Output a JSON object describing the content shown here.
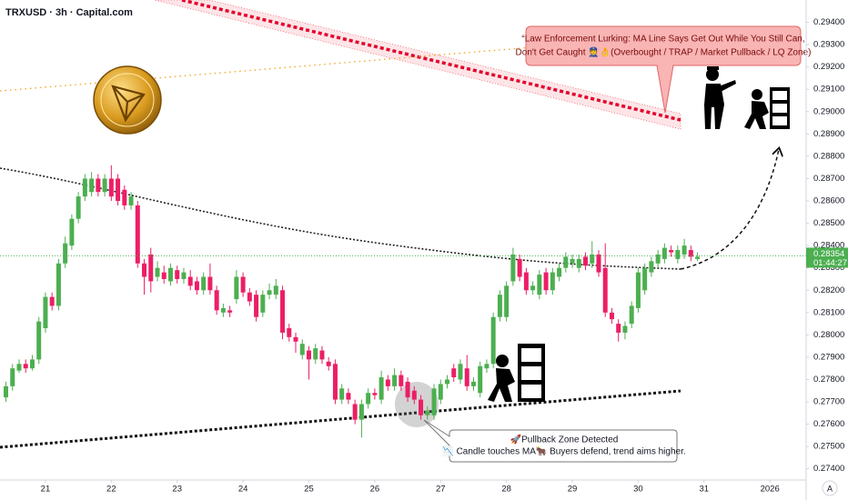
{
  "chart_data": {
    "type": "candlestick",
    "title": "TRXUSD · 3h · Capital.com",
    "x": [
      20.4,
      20.5,
      20.6,
      20.7,
      20.8,
      20.9,
      21.0,
      21.1,
      21.2,
      21.3,
      21.4,
      21.5,
      21.6,
      21.7,
      21.8,
      21.9,
      22.0,
      22.1,
      22.2,
      22.3,
      22.4,
      22.5,
      22.6,
      22.7,
      22.8,
      22.9,
      23.0,
      23.1,
      23.2,
      23.3,
      23.4,
      23.5,
      23.6,
      23.7,
      23.8,
      23.9,
      24.0,
      24.1,
      24.2,
      24.3,
      24.4,
      24.5,
      24.6,
      24.7,
      24.8,
      24.9,
      25.0,
      25.1,
      25.2,
      25.3,
      25.4,
      25.5,
      25.6,
      25.7,
      25.8,
      25.9,
      26.0,
      26.1,
      26.2,
      26.3,
      26.4,
      26.5,
      26.6,
      26.7,
      26.8,
      26.9,
      27.0,
      27.1,
      27.2,
      27.3,
      27.4,
      27.5,
      27.6,
      27.7,
      27.8,
      27.9,
      28.0,
      28.1,
      28.2,
      28.3,
      28.4,
      28.5,
      28.6,
      28.7,
      28.8,
      28.9,
      29.0,
      29.1,
      29.2,
      29.3,
      29.4,
      29.5,
      29.6,
      29.7,
      29.8,
      29.9,
      30.0,
      30.1,
      30.2,
      30.3,
      30.4,
      30.5,
      30.6,
      30.7,
      30.8,
      30.9
    ],
    "open": [
      0.2772,
      0.2777,
      0.2784,
      0.2787,
      0.2785,
      0.2789,
      0.2803,
      0.2817,
      0.2813,
      0.2832,
      0.284,
      0.2852,
      0.2862,
      0.2864,
      0.287,
      0.2864,
      0.287,
      0.287,
      0.2865,
      0.2858,
      0.2858,
      0.2832,
      0.2836,
      0.2826,
      0.2828,
      0.2824,
      0.2829,
      0.2825,
      0.2826,
      0.2824,
      0.282,
      0.2826,
      0.282,
      0.281,
      0.2811,
      0.2816,
      0.2826,
      0.2819,
      0.2818,
      0.281,
      0.2818,
      0.2818,
      0.282,
      0.2803,
      0.2799,
      0.2791,
      0.2793,
      0.2789,
      0.2793,
      0.2788,
      0.2787,
      0.2771,
      0.2774,
      0.2769,
      0.2762,
      0.2769,
      0.2774,
      0.2771,
      0.278,
      0.2777,
      0.2782,
      0.2779,
      0.2775,
      0.2771,
      0.2764,
      0.2764,
      0.2771,
      0.2778,
      0.2785,
      0.278,
      0.2785,
      0.2777,
      0.2774,
      0.2785,
      0.2787,
      0.2808,
      0.2808,
      0.2824,
      0.2834,
      0.2828,
      0.282,
      0.2818,
      0.2828,
      0.282,
      0.2826,
      0.283,
      0.2832,
      0.283,
      0.2835,
      0.2832,
      0.2836,
      0.283,
      0.281,
      0.2805,
      0.2801,
      0.2805,
      0.2812,
      0.282,
      0.2828,
      0.2832,
      0.2834,
      0.2838,
      0.2834,
      0.2836,
      0.2838,
      0.2834
    ],
    "high": [
      0.2779,
      0.2787,
      0.2789,
      0.2789,
      0.2791,
      0.2808,
      0.2819,
      0.2819,
      0.2834,
      0.2844,
      0.2854,
      0.2864,
      0.2872,
      0.2873,
      0.2872,
      0.2872,
      0.2876,
      0.2872,
      0.2867,
      0.2864,
      0.286,
      0.2834,
      0.2839,
      0.2833,
      0.2831,
      0.2832,
      0.2831,
      0.283,
      0.2829,
      0.2826,
      0.2828,
      0.2832,
      0.2822,
      0.2814,
      0.2813,
      0.2829,
      0.2828,
      0.2821,
      0.282,
      0.282,
      0.2823,
      0.2825,
      0.2822,
      0.2805,
      0.2801,
      0.2798,
      0.2795,
      0.2796,
      0.2795,
      0.279,
      0.2789,
      0.2778,
      0.2776,
      0.2771,
      0.2771,
      0.2776,
      0.2776,
      0.2784,
      0.2782,
      0.2785,
      0.2784,
      0.2781,
      0.2777,
      0.2773,
      0.2768,
      0.2778,
      0.278,
      0.2782,
      0.2787,
      0.2789,
      0.2791,
      0.2781,
      0.2788,
      0.2789,
      0.281,
      0.282,
      0.2824,
      0.2839,
      0.2836,
      0.283,
      0.2824,
      0.2829,
      0.283,
      0.283,
      0.2832,
      0.2837,
      0.2836,
      0.2836,
      0.2837,
      0.2842,
      0.2838,
      0.2841,
      0.2812,
      0.2807,
      0.2806,
      0.2815,
      0.283,
      0.2832,
      0.2835,
      0.2838,
      0.2841,
      0.284,
      0.284,
      0.2843,
      0.284,
      0.2837
    ],
    "low": [
      0.277,
      0.2775,
      0.2783,
      0.2783,
      0.2784,
      0.2787,
      0.2801,
      0.2811,
      0.2811,
      0.283,
      0.2838,
      0.285,
      0.286,
      0.2862,
      0.2862,
      0.2862,
      0.286,
      0.2858,
      0.2856,
      0.2856,
      0.283,
      0.2818,
      0.2819,
      0.2824,
      0.2823,
      0.2822,
      0.2823,
      0.2823,
      0.282,
      0.2818,
      0.2818,
      0.2818,
      0.2809,
      0.2808,
      0.2808,
      0.2814,
      0.2817,
      0.2813,
      0.2806,
      0.2808,
      0.2816,
      0.2816,
      0.2798,
      0.2797,
      0.2792,
      0.2789,
      0.278,
      0.2787,
      0.2787,
      0.2784,
      0.2769,
      0.2769,
      0.2769,
      0.276,
      0.2754,
      0.2767,
      0.2771,
      0.2769,
      0.2775,
      0.2775,
      0.2775,
      0.277,
      0.2769,
      0.2762,
      0.2762,
      0.2762,
      0.2769,
      0.2776,
      0.2779,
      0.2778,
      0.2775,
      0.2775,
      0.2772,
      0.2783,
      0.2785,
      0.2806,
      0.2806,
      0.2822,
      0.2824,
      0.2818,
      0.2818,
      0.2816,
      0.2818,
      0.2818,
      0.2824,
      0.2828,
      0.283,
      0.2828,
      0.2829,
      0.283,
      0.2826,
      0.2808,
      0.2805,
      0.2797,
      0.2798,
      0.2803,
      0.281,
      0.2818,
      0.2826,
      0.283,
      0.2832,
      0.2835,
      0.2832,
      0.2834,
      0.2833,
      0.2833
    ],
    "close": [
      0.2777,
      0.2785,
      0.2787,
      0.2785,
      0.2789,
      0.2806,
      0.2817,
      0.2813,
      0.2832,
      0.2841,
      0.2852,
      0.2862,
      0.287,
      0.287,
      0.2864,
      0.287,
      0.2862,
      0.286,
      0.2858,
      0.2862,
      0.2832,
      0.2826,
      0.2824,
      0.283,
      0.2825,
      0.283,
      0.2825,
      0.2828,
      0.2822,
      0.282,
      0.2826,
      0.282,
      0.2811,
      0.2812,
      0.281,
      0.2826,
      0.2819,
      0.2815,
      0.2808,
      0.2818,
      0.282,
      0.2822,
      0.2801,
      0.2799,
      0.2797,
      0.2796,
      0.2789,
      0.2794,
      0.2789,
      0.2786,
      0.2771,
      0.2776,
      0.2771,
      0.2762,
      0.2769,
      0.2774,
      0.2773,
      0.2781,
      0.2777,
      0.2782,
      0.2777,
      0.2772,
      0.2771,
      0.2764,
      0.2766,
      0.2776,
      0.2778,
      0.278,
      0.2781,
      0.2787,
      0.2777,
      0.2779,
      0.2786,
      0.2787,
      0.2808,
      0.2818,
      0.2822,
      0.2836,
      0.2826,
      0.282,
      0.2822,
      0.2827,
      0.282,
      0.2828,
      0.283,
      0.2835,
      0.2834,
      0.2834,
      0.2831,
      0.2836,
      0.2828,
      0.281,
      0.2807,
      0.2801,
      0.2804,
      0.2813,
      0.2828,
      0.283,
      0.2833,
      0.2836,
      0.2839,
      0.2837,
      0.2838,
      0.284,
      0.2835,
      0.2835
    ],
    "up_color": "#4caf50",
    "down_color": "#ec1e66",
    "xlim": [
      20.31,
      32.55
    ],
    "xticks": [
      21,
      22,
      23,
      24,
      25,
      26,
      27,
      28,
      29,
      30,
      31,
      {
        "value": 32,
        "label": "2026"
      }
    ],
    "ylim": [
      0.2735,
      0.295
    ],
    "yticks": [
      {
        "value": 0.295,
        "label": "0.29500"
      },
      {
        "value": 0.294,
        "label": "0.29400"
      },
      {
        "value": 0.293,
        "label": "0.29300"
      },
      {
        "value": 0.292,
        "label": "0.29200"
      },
      {
        "value": 0.291,
        "label": "0.29100"
      },
      {
        "value": 0.29,
        "label": "0.29000"
      },
      {
        "value": 0.289,
        "label": "0.28900"
      },
      {
        "value": 0.288,
        "label": "0.28800"
      },
      {
        "value": 0.287,
        "label": "0.28700"
      },
      {
        "value": 0.286,
        "label": "0.28600"
      },
      {
        "value": 0.285,
        "label": "0.28500"
      },
      {
        "value": 0.284,
        "label": "0.28400"
      },
      {
        "value": 0.283,
        "label": "0.28300"
      },
      {
        "value": 0.282,
        "label": "0.28200"
      },
      {
        "value": 0.281,
        "label": "0.28100"
      },
      {
        "value": 0.28,
        "label": "0.28000"
      },
      {
        "value": 0.279,
        "label": "0.27900"
      },
      {
        "value": 0.278,
        "label": "0.27800"
      },
      {
        "value": 0.277,
        "label": "0.27700"
      },
      {
        "value": 0.276,
        "label": "0.27600"
      },
      {
        "value": 0.275,
        "label": "0.27500"
      },
      {
        "value": 0.274,
        "label": "0.27400"
      }
    ],
    "grid": false,
    "last_price": 0.28354,
    "countdown": "01:44:27",
    "annotations": [
      {
        "lines": [
          "“Law Enforcement Lurking: MA Line Says Get Out While You Still Can,",
          "Don't Get Caught 👮👌(Overbought / TRAP / Market Pullback / LQ Zone)"
        ]
      },
      {
        "lines": [
          "🚀Pullback Zone Detected",
          "📉 Candle touches MA🐂 Buyers defend, trend aims higher."
        ]
      }
    ]
  }
}
